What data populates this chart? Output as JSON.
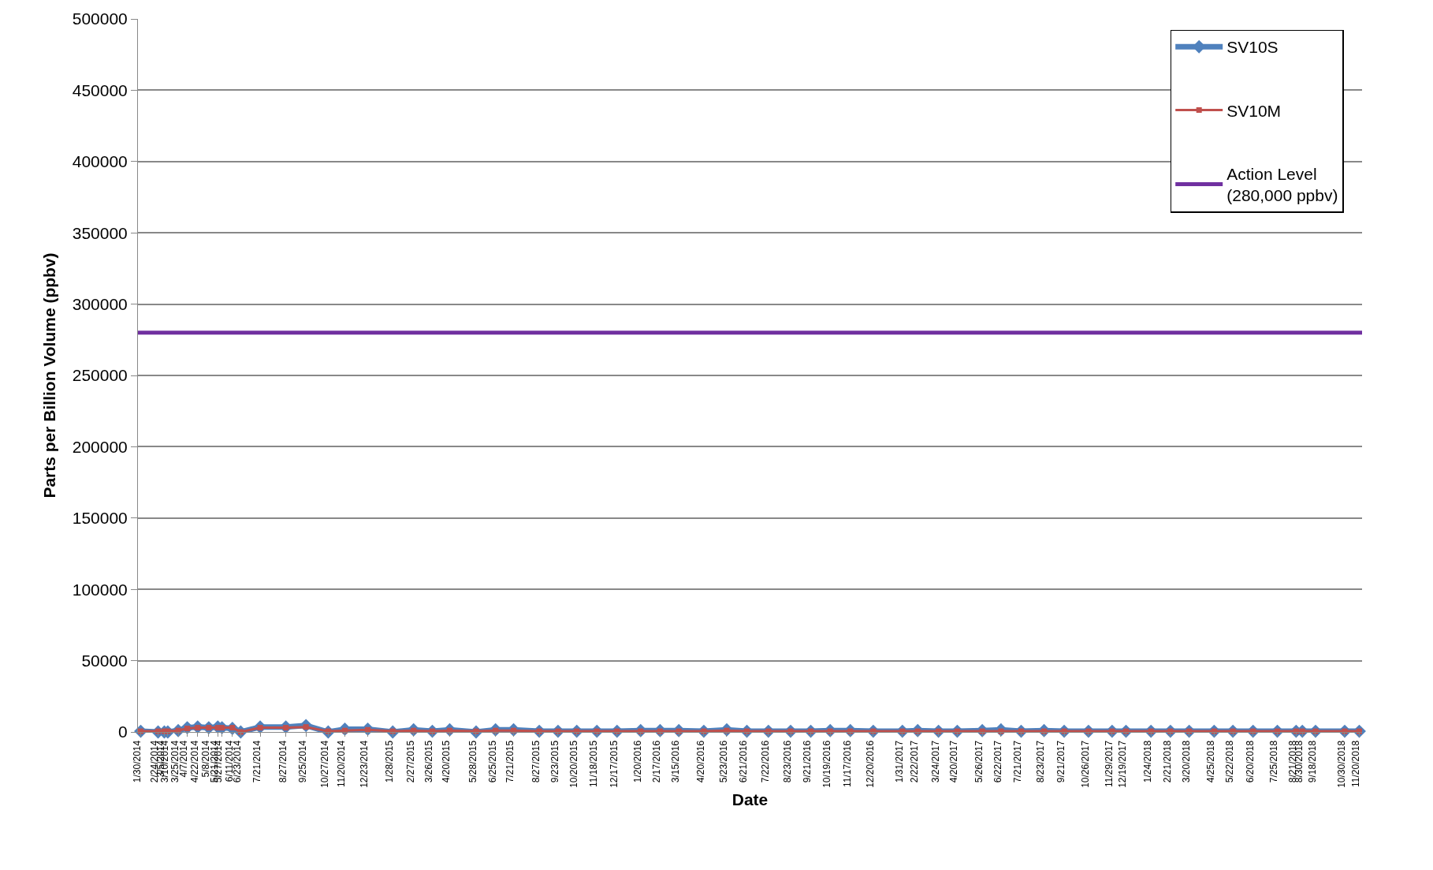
{
  "chart_data": {
    "type": "line",
    "xlabel": "Date",
    "ylabel": "Parts per Billion Volume (ppbv)",
    "x": [
      "2014-01-30",
      "2014-02-24",
      "2014-03-05",
      "2014-03-10",
      "2014-03-25",
      "2014-04-07",
      "2014-04-22",
      "2014-05-08",
      "2014-05-21",
      "2014-05-27",
      "2014-06-11",
      "2014-06-23",
      "2014-07-21",
      "2014-08-27",
      "2014-09-25",
      "2014-10-27",
      "2014-11-20",
      "2014-12-23",
      "2015-01-28",
      "2015-02-27",
      "2015-03-26",
      "2015-04-20",
      "2015-05-28",
      "2015-06-25",
      "2015-07-21",
      "2015-08-27",
      "2015-09-23",
      "2015-10-20",
      "2015-11-18",
      "2015-12-17",
      "2016-01-20",
      "2016-02-17",
      "2016-03-15",
      "2016-04-20",
      "2016-05-23",
      "2016-06-21",
      "2016-07-22",
      "2016-08-23",
      "2016-09-21",
      "2016-10-19",
      "2016-11-17",
      "2016-12-20",
      "2017-01-31",
      "2017-02-22",
      "2017-03-24",
      "2017-04-20",
      "2017-05-26",
      "2017-06-22",
      "2017-07-21",
      "2017-08-23",
      "2017-09-21",
      "2017-10-26",
      "2017-11-29",
      "2017-12-19",
      "2018-01-24",
      "2018-02-21",
      "2018-03-20",
      "2018-04-25",
      "2018-05-22",
      "2018-06-20",
      "2018-07-25",
      "2018-08-21",
      "2018-08-30",
      "2018-09-18",
      "2018-10-30",
      "2018-11-20"
    ],
    "xlim": [
      "2014-01-26",
      "2018-11-24"
    ],
    "xticks": [
      {
        "value": "2014-01-30",
        "label": "1/30/2014"
      },
      {
        "value": "2014-02-24",
        "label": "2/24/2014"
      },
      {
        "value": "2014-03-05",
        "label": "3/5/2014"
      },
      {
        "value": "2014-03-10",
        "label": "3/10/2014"
      },
      {
        "value": "2014-03-25",
        "label": "3/25/2014"
      },
      {
        "value": "2014-04-07",
        "label": "4/7/2014"
      },
      {
        "value": "2014-04-22",
        "label": "4/22/2014"
      },
      {
        "value": "2014-05-08",
        "label": "5/8/2014"
      },
      {
        "value": "2014-05-21",
        "label": "5/21/2014"
      },
      {
        "value": "2014-05-27",
        "label": "5/27/2014"
      },
      {
        "value": "2014-06-11",
        "label": "6/11/2014"
      },
      {
        "value": "2014-06-23",
        "label": "6/23/2014"
      },
      {
        "value": "2014-07-21",
        "label": "7/21/2014"
      },
      {
        "value": "2014-08-27",
        "label": "8/27/2014"
      },
      {
        "value": "2014-09-25",
        "label": "9/25/2014"
      },
      {
        "value": "2014-10-27",
        "label": "10/27/2014"
      },
      {
        "value": "2014-11-20",
        "label": "11/20/2014"
      },
      {
        "value": "2014-12-23",
        "label": "12/23/2014"
      },
      {
        "value": "2015-01-28",
        "label": "1/28/2015"
      },
      {
        "value": "2015-02-27",
        "label": "2/27/2015"
      },
      {
        "value": "2015-03-26",
        "label": "3/26/2015"
      },
      {
        "value": "2015-04-20",
        "label": "4/20/2015"
      },
      {
        "value": "2015-05-28",
        "label": "5/28/2015"
      },
      {
        "value": "2015-06-25",
        "label": "6/25/2015"
      },
      {
        "value": "2015-07-21",
        "label": "7/21/2015"
      },
      {
        "value": "2015-08-27",
        "label": "8/27/2015"
      },
      {
        "value": "2015-09-23",
        "label": "9/23/2015"
      },
      {
        "value": "2015-10-20",
        "label": "10/20/2015"
      },
      {
        "value": "2015-11-18",
        "label": "11/18/2015"
      },
      {
        "value": "2015-12-17",
        "label": "12/17/2015"
      },
      {
        "value": "2016-01-20",
        "label": "1/20/2016"
      },
      {
        "value": "2016-02-17",
        "label": "2/17/2016"
      },
      {
        "value": "2016-03-15",
        "label": "3/15/2016"
      },
      {
        "value": "2016-04-20",
        "label": "4/20/2016"
      },
      {
        "value": "2016-05-23",
        "label": "5/23/2016"
      },
      {
        "value": "2016-06-21",
        "label": "6/21/2016"
      },
      {
        "value": "2016-07-22",
        "label": "7/22/2016"
      },
      {
        "value": "2016-08-23",
        "label": "8/23/2016"
      },
      {
        "value": "2016-09-21",
        "label": "9/21/2016"
      },
      {
        "value": "2016-10-19",
        "label": "10/19/2016"
      },
      {
        "value": "2016-11-17",
        "label": "11/17/2016"
      },
      {
        "value": "2016-12-20",
        "label": "12/20/2016"
      },
      {
        "value": "2017-01-31",
        "label": "1/31/2017"
      },
      {
        "value": "2017-02-22",
        "label": "2/22/2017"
      },
      {
        "value": "2017-03-24",
        "label": "3/24/2017"
      },
      {
        "value": "2017-04-20",
        "label": "4/20/2017"
      },
      {
        "value": "2017-05-26",
        "label": "5/26/2017"
      },
      {
        "value": "2017-06-22",
        "label": "6/22/2017"
      },
      {
        "value": "2017-07-21",
        "label": "7/21/2017"
      },
      {
        "value": "2017-08-23",
        "label": "8/23/2017"
      },
      {
        "value": "2017-09-21",
        "label": "9/21/2017"
      },
      {
        "value": "2017-10-26",
        "label": "10/26/2017"
      },
      {
        "value": "2017-11-29",
        "label": "11/29/2017"
      },
      {
        "value": "2017-12-19",
        "label": "12/19/2017"
      },
      {
        "value": "2018-01-24",
        "label": "1/24/2018"
      },
      {
        "value": "2018-02-21",
        "label": "2/21/2018"
      },
      {
        "value": "2018-03-20",
        "label": "3/20/2018"
      },
      {
        "value": "2018-04-25",
        "label": "4/25/2018"
      },
      {
        "value": "2018-05-22",
        "label": "5/22/2018"
      },
      {
        "value": "2018-06-20",
        "label": "6/20/2018"
      },
      {
        "value": "2018-07-25",
        "label": "7/25/2018"
      },
      {
        "value": "2018-08-21",
        "label": "8/21/2018"
      },
      {
        "value": "2018-08-30",
        "label": "8/30/2018"
      },
      {
        "value": "2018-09-18",
        "label": "9/18/2018"
      },
      {
        "value": "2018-10-30",
        "label": "10/30/2018"
      },
      {
        "value": "2018-11-20",
        "label": "11/20/2018"
      }
    ],
    "ylim": [
      0,
      500000
    ],
    "yticks": [
      0,
      50000,
      100000,
      150000,
      200000,
      250000,
      300000,
      350000,
      400000,
      450000,
      500000
    ],
    "grid": "y",
    "legend": "top right",
    "series": [
      {
        "name": "SV10S",
        "color": "#4f81bd",
        "marker": "diamond",
        "values": [
          500,
          0,
          0,
          0,
          1000,
          3000,
          3500,
          3000,
          3500,
          3000,
          2500,
          0,
          3500,
          3500,
          4500,
          0,
          2000,
          2000,
          0,
          1500,
          500,
          1500,
          0,
          1500,
          1500,
          500,
          500,
          500,
          500,
          500,
          1000,
          1000,
          1000,
          500,
          1500,
          500,
          500,
          500,
          500,
          1000,
          1000,
          500,
          500,
          1000,
          500,
          500,
          1000,
          1500,
          500,
          1000,
          500,
          500,
          500,
          500,
          500,
          500,
          500,
          500,
          500,
          500,
          500,
          500,
          500,
          500,
          500,
          500
        ]
      },
      {
        "name": "SV10M",
        "color": "#c0504d",
        "marker": "square",
        "values": [
          500,
          500,
          500,
          500,
          1000,
          2500,
          3000,
          3000,
          3000,
          3000,
          3000,
          0,
          3000,
          3000,
          3500,
          500,
          1000,
          1500,
          500,
          1000,
          500,
          1000,
          500,
          1000,
          1000,
          500,
          500,
          500,
          500,
          500,
          500,
          500,
          500,
          500,
          1000,
          500,
          500,
          500,
          500,
          500,
          500,
          500,
          500,
          500,
          500,
          500,
          500,
          500,
          500,
          500,
          500,
          500,
          500,
          500,
          500,
          500,
          500,
          500,
          500,
          500,
          500,
          500,
          500,
          500,
          500,
          500
        ]
      },
      {
        "name": "Action Level\n(280,000 ppbv)",
        "color": "#7030a0",
        "marker": "none",
        "x": [
          "2014-01-26",
          "2018-11-24"
        ],
        "values": [
          280000,
          280000
        ]
      }
    ]
  }
}
